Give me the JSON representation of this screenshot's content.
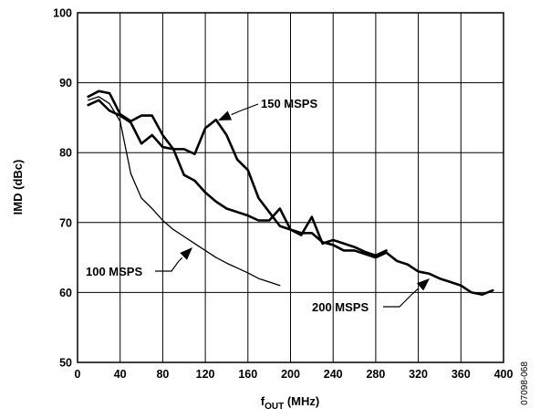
{
  "chart_data": {
    "type": "line",
    "title": "",
    "xlabel": {
      "main": "f",
      "sub": "OUT",
      "unit": " (MHz)"
    },
    "ylabel": "IMD (dBc)",
    "xlim": [
      0,
      400
    ],
    "ylim": [
      50,
      100
    ],
    "xticks": [
      0,
      40,
      80,
      120,
      160,
      200,
      240,
      280,
      320,
      360,
      400
    ],
    "yticks": [
      50,
      60,
      70,
      80,
      90,
      100
    ],
    "grid": true,
    "figure_id": "07098-068",
    "series": [
      {
        "name": "100 MSPS",
        "linewidth": "thin",
        "x": [
          10,
          20,
          30,
          40,
          50,
          60,
          70,
          80,
          90,
          100,
          110,
          120,
          130,
          140,
          150,
          160,
          170,
          180,
          190
        ],
        "y": [
          87.5,
          88.0,
          87.0,
          84.5,
          77.0,
          73.5,
          72.0,
          70.3,
          69.0,
          68.0,
          67.0,
          66.0,
          65.0,
          64.2,
          63.5,
          62.8,
          62.0,
          61.5,
          61.0
        ]
      },
      {
        "name": "150 MSPS",
        "linewidth": "thick",
        "x": [
          10,
          20,
          30,
          40,
          50,
          60,
          70,
          80,
          90,
          100,
          110,
          120,
          130,
          140,
          150,
          160,
          170,
          180,
          190,
          200,
          210,
          220,
          230,
          240,
          250,
          260,
          270,
          280,
          290
        ],
        "y": [
          88.0,
          88.8,
          88.5,
          85.5,
          84.5,
          85.3,
          85.3,
          82.5,
          80.5,
          80.5,
          79.8,
          83.5,
          84.7,
          82.5,
          79.0,
          77.5,
          73.5,
          71.5,
          69.5,
          69.0,
          68.2,
          70.8,
          67.0,
          67.5,
          67.0,
          66.5,
          65.8,
          65.3,
          66.0
        ]
      },
      {
        "name": "200 MSPS",
        "linewidth": "thick",
        "x": [
          10,
          20,
          30,
          40,
          50,
          60,
          70,
          80,
          90,
          100,
          110,
          120,
          130,
          140,
          150,
          160,
          170,
          180,
          190,
          200,
          210,
          220,
          230,
          240,
          250,
          260,
          270,
          280,
          290,
          300,
          310,
          320,
          330,
          340,
          350,
          360,
          370,
          380,
          390
        ],
        "y": [
          86.8,
          87.5,
          86.0,
          85.3,
          84.3,
          81.3,
          82.5,
          80.8,
          80.5,
          76.8,
          76.0,
          74.3,
          73.0,
          72.0,
          71.5,
          71.0,
          70.3,
          70.3,
          72.0,
          69.0,
          68.5,
          68.5,
          67.2,
          66.8,
          66.0,
          66.0,
          65.5,
          65.0,
          65.7,
          64.5,
          64.0,
          63.0,
          62.7,
          62.0,
          61.5,
          61.0,
          60.0,
          59.7,
          60.3
        ]
      }
    ],
    "annotations": [
      {
        "text": "150 MSPS",
        "series": "150 MSPS"
      },
      {
        "text": "100 MSPS",
        "series": "100 MSPS"
      },
      {
        "text": "200 MSPS",
        "series": "200 MSPS"
      }
    ]
  }
}
